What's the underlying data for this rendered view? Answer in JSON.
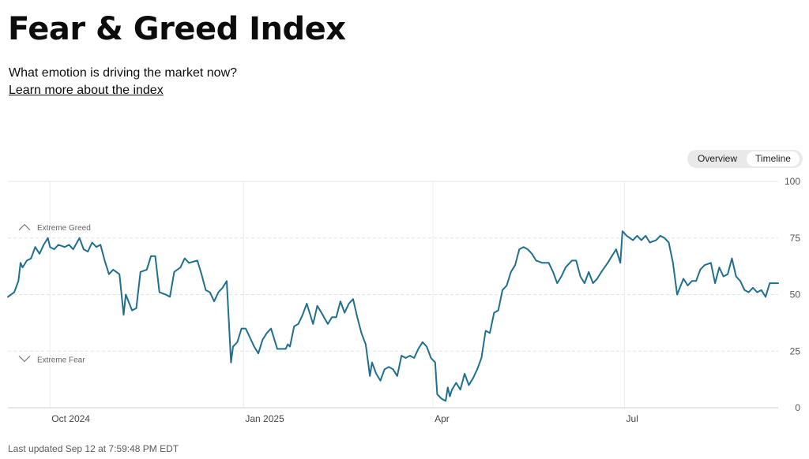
{
  "header": {
    "title": "Fear & Greed Index",
    "subtitle": "What emotion is driving the market now?",
    "learn_more": "Learn more about the index"
  },
  "toggle": {
    "overview": "Overview",
    "timeline": "Timeline",
    "active": "Timeline"
  },
  "footer": {
    "last_updated": "Last updated Sep 12 at 7:59:48 PM EDT"
  },
  "colors": {
    "line": "#1f6f8f",
    "grid": "#e4e4e4",
    "zone": "#d9d9d9"
  },
  "chart_data": {
    "type": "line",
    "title": "",
    "xlabel": "",
    "ylabel": "",
    "ylim": [
      0,
      100
    ],
    "y_ticks": [
      0,
      25,
      50,
      75,
      100
    ],
    "x_ticks": [
      {
        "label": "Oct 2024",
        "x": "2024-10-01"
      },
      {
        "label": "Jan 2025",
        "x": "2025-01-01"
      },
      {
        "label": "Apr",
        "x": "2025-04-01"
      },
      {
        "label": "Jul",
        "x": "2025-07-01"
      }
    ],
    "xlim": [
      "2024-09-11",
      "2025-09-12"
    ],
    "annotations": [
      {
        "text": "Extreme Greed",
        "y": 75,
        "icon": "chevron-up-icon"
      },
      {
        "text": "Extreme Fear",
        "y": 25,
        "icon": "chevron-down-icon"
      }
    ],
    "grid": true,
    "series": [
      {
        "points": [
          [
            "2024-09-11",
            49
          ],
          [
            "2024-09-14",
            51
          ],
          [
            "2024-09-16",
            56
          ],
          [
            "2024-09-17",
            64
          ],
          [
            "2024-09-18",
            62
          ],
          [
            "2024-09-20",
            65
          ],
          [
            "2024-09-22",
            66
          ],
          [
            "2024-09-24",
            71
          ],
          [
            "2024-09-26",
            68
          ],
          [
            "2024-09-28",
            72
          ],
          [
            "2024-09-30",
            75
          ],
          [
            "2024-10-01",
            71
          ],
          [
            "2024-10-03",
            70
          ],
          [
            "2024-10-05",
            72
          ],
          [
            "2024-10-08",
            71
          ],
          [
            "2024-10-10",
            72
          ],
          [
            "2024-10-12",
            70
          ],
          [
            "2024-10-15",
            75
          ],
          [
            "2024-10-17",
            70
          ],
          [
            "2024-10-19",
            69
          ],
          [
            "2024-10-21",
            73
          ],
          [
            "2024-10-23",
            71
          ],
          [
            "2024-10-25",
            72
          ],
          [
            "2024-10-27",
            65
          ],
          [
            "2024-10-29",
            59
          ],
          [
            "2024-10-31",
            61
          ],
          [
            "2024-11-03",
            59
          ],
          [
            "2024-11-05",
            41
          ],
          [
            "2024-11-06",
            50
          ],
          [
            "2024-11-09",
            43
          ],
          [
            "2024-11-11",
            44
          ],
          [
            "2024-11-13",
            60
          ],
          [
            "2024-11-16",
            61
          ],
          [
            "2024-11-18",
            67
          ],
          [
            "2024-11-20",
            67
          ],
          [
            "2024-11-22",
            51
          ],
          [
            "2024-11-25",
            50
          ],
          [
            "2024-11-27",
            49
          ],
          [
            "2024-11-29",
            60
          ],
          [
            "2024-12-02",
            62
          ],
          [
            "2024-12-04",
            66
          ],
          [
            "2024-12-06",
            64
          ],
          [
            "2024-12-10",
            65
          ],
          [
            "2024-12-12",
            59
          ],
          [
            "2024-12-14",
            52
          ],
          [
            "2024-12-16",
            51
          ],
          [
            "2024-12-18",
            47
          ],
          [
            "2024-12-20",
            51
          ],
          [
            "2024-12-22",
            53
          ],
          [
            "2024-12-24",
            56
          ],
          [
            "2024-12-26",
            20
          ],
          [
            "2024-12-27",
            27
          ],
          [
            "2024-12-29",
            29
          ],
          [
            "2024-12-31",
            35
          ],
          [
            "2025-01-02",
            35
          ],
          [
            "2025-01-04",
            31
          ],
          [
            "2025-01-06",
            27
          ],
          [
            "2025-01-08",
            24
          ],
          [
            "2025-01-10",
            30
          ],
          [
            "2025-01-12",
            33
          ],
          [
            "2025-01-14",
            35
          ],
          [
            "2025-01-17",
            26
          ],
          [
            "2025-01-21",
            26
          ],
          [
            "2025-01-22",
            28
          ],
          [
            "2025-01-23",
            27
          ],
          [
            "2025-01-25",
            36
          ],
          [
            "2025-01-27",
            37
          ],
          [
            "2025-01-29",
            41
          ],
          [
            "2025-01-31",
            46
          ],
          [
            "2025-02-03",
            37
          ],
          [
            "2025-02-05",
            45
          ],
          [
            "2025-02-07",
            42
          ],
          [
            "2025-02-10",
            37
          ],
          [
            "2025-02-12",
            40
          ],
          [
            "2025-02-14",
            40
          ],
          [
            "2025-02-16",
            47
          ],
          [
            "2025-02-18",
            42
          ],
          [
            "2025-02-20",
            46
          ],
          [
            "2025-02-22",
            48
          ],
          [
            "2025-02-24",
            40
          ],
          [
            "2025-02-26",
            33
          ],
          [
            "2025-02-28",
            28
          ],
          [
            "2025-03-02",
            14
          ],
          [
            "2025-03-03",
            20
          ],
          [
            "2025-03-05",
            15
          ],
          [
            "2025-03-07",
            12
          ],
          [
            "2025-03-09",
            17
          ],
          [
            "2025-03-11",
            18
          ],
          [
            "2025-03-13",
            17
          ],
          [
            "2025-03-15",
            14
          ],
          [
            "2025-03-17",
            23
          ],
          [
            "2025-03-19",
            22
          ],
          [
            "2025-03-21",
            23
          ],
          [
            "2025-03-23",
            22
          ],
          [
            "2025-03-25",
            26
          ],
          [
            "2025-03-27",
            29
          ],
          [
            "2025-03-29",
            27
          ],
          [
            "2025-03-31",
            22
          ],
          [
            "2025-04-02",
            20
          ],
          [
            "2025-04-03",
            6
          ],
          [
            "2025-04-05",
            4
          ],
          [
            "2025-04-07",
            3
          ],
          [
            "2025-04-08",
            9
          ],
          [
            "2025-04-09",
            5
          ],
          [
            "2025-04-10",
            8
          ],
          [
            "2025-04-12",
            11
          ],
          [
            "2025-04-14",
            8
          ],
          [
            "2025-04-16",
            15
          ],
          [
            "2025-04-18",
            10
          ],
          [
            "2025-04-20",
            13
          ],
          [
            "2025-04-22",
            17
          ],
          [
            "2025-04-24",
            22
          ],
          [
            "2025-04-26",
            34
          ],
          [
            "2025-04-28",
            33
          ],
          [
            "2025-04-30",
            42
          ],
          [
            "2025-05-02",
            43
          ],
          [
            "2025-05-04",
            52
          ],
          [
            "2025-05-06",
            54
          ],
          [
            "2025-05-08",
            60
          ],
          [
            "2025-05-10",
            63
          ],
          [
            "2025-05-12",
            70
          ],
          [
            "2025-05-14",
            71
          ],
          [
            "2025-05-16",
            70
          ],
          [
            "2025-05-18",
            68
          ],
          [
            "2025-05-20",
            65
          ],
          [
            "2025-05-23",
            64
          ],
          [
            "2025-05-26",
            64
          ],
          [
            "2025-05-28",
            60
          ],
          [
            "2025-05-30",
            55
          ],
          [
            "2025-06-01",
            58
          ],
          [
            "2025-06-03",
            62
          ],
          [
            "2025-06-06",
            65
          ],
          [
            "2025-06-08",
            65
          ],
          [
            "2025-06-10",
            58
          ],
          [
            "2025-06-12",
            55
          ],
          [
            "2025-06-14",
            60
          ],
          [
            "2025-06-16",
            55
          ],
          [
            "2025-06-18",
            57
          ],
          [
            "2025-06-20",
            60
          ],
          [
            "2025-06-23",
            64
          ],
          [
            "2025-06-25",
            67
          ],
          [
            "2025-06-27",
            70
          ],
          [
            "2025-06-29",
            64
          ],
          [
            "2025-06-30",
            78
          ],
          [
            "2025-07-02",
            76
          ],
          [
            "2025-07-05",
            74
          ],
          [
            "2025-07-07",
            76
          ],
          [
            "2025-07-09",
            74
          ],
          [
            "2025-07-11",
            76
          ],
          [
            "2025-07-13",
            73
          ],
          [
            "2025-07-16",
            74
          ],
          [
            "2025-07-18",
            76
          ],
          [
            "2025-07-20",
            75
          ],
          [
            "2025-07-22",
            73
          ],
          [
            "2025-07-24",
            64
          ],
          [
            "2025-07-26",
            50
          ],
          [
            "2025-07-29",
            57
          ],
          [
            "2025-07-31",
            54
          ],
          [
            "2025-08-02",
            56
          ],
          [
            "2025-08-04",
            56
          ],
          [
            "2025-08-06",
            61
          ],
          [
            "2025-08-08",
            63
          ],
          [
            "2025-08-11",
            64
          ],
          [
            "2025-08-13",
            55
          ],
          [
            "2025-08-15",
            62
          ],
          [
            "2025-08-17",
            58
          ],
          [
            "2025-08-19",
            59
          ],
          [
            "2025-08-21",
            66
          ],
          [
            "2025-08-23",
            58
          ],
          [
            "2025-08-25",
            56
          ],
          [
            "2025-08-27",
            52
          ],
          [
            "2025-08-29",
            51
          ],
          [
            "2025-08-31",
            53
          ],
          [
            "2025-09-02",
            51
          ],
          [
            "2025-09-04",
            52
          ],
          [
            "2025-09-06",
            49
          ],
          [
            "2025-09-08",
            55
          ],
          [
            "2025-09-12",
            55
          ]
        ]
      }
    ]
  }
}
